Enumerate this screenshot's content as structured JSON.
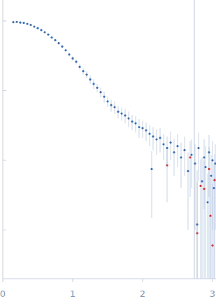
{
  "chart_data": {
    "type": "scatter",
    "log": "y",
    "grid": false,
    "tick_labels": "x",
    "marker": "circle",
    "xlim": [
      0,
      3.05
    ],
    "ylim": [
      0.0002,
      2
    ],
    "xticks": [
      0,
      1,
      2,
      3
    ],
    "yticks": [
      1,
      0.1,
      0.01,
      0.001
    ],
    "x_markers": [
      2.74
    ],
    "series": [
      {
        "color": "#3a6fbf",
        "x": [
          0.15,
          0.2,
          0.25,
          0.3,
          0.35,
          0.4,
          0.45,
          0.5,
          0.55,
          0.6,
          0.65,
          0.7,
          0.75,
          0.8,
          0.85,
          0.9,
          0.95,
          1.0,
          1.05,
          1.1,
          1.15,
          1.2,
          1.25,
          1.3,
          1.35,
          1.4,
          1.45,
          1.5,
          1.55,
          1.6,
          1.65,
          1.7,
          1.75,
          1.8,
          1.85,
          1.9,
          1.95,
          2.0,
          2.05,
          2.1,
          2.13,
          2.15,
          2.2,
          2.25,
          2.3,
          2.35,
          2.4,
          2.45,
          2.5,
          2.55,
          2.6,
          2.65,
          2.7,
          2.75,
          2.78,
          2.8,
          2.85,
          2.88,
          2.9,
          2.93,
          2.95,
          2.98,
          3.0,
          3.02,
          3.04
        ],
        "values": [
          0.96,
          0.97,
          0.95,
          0.94,
          0.91,
          0.88,
          0.83,
          0.79,
          0.74,
          0.69,
          0.64,
          0.58,
          0.53,
          0.48,
          0.43,
          0.38,
          0.33,
          0.29,
          0.26,
          0.22,
          0.19,
          0.17,
          0.145,
          0.125,
          0.11,
          0.095,
          0.082,
          0.07,
          0.062,
          0.058,
          0.05,
          0.047,
          0.044,
          0.04,
          0.036,
          0.034,
          0.03,
          0.029,
          0.027,
          0.024,
          0.0075,
          0.022,
          0.02,
          0.021,
          0.017,
          0.015,
          0.018,
          0.013,
          0.016,
          0.011,
          0.014,
          0.007,
          0.012,
          0.009,
          0.0012,
          0.015,
          0.005,
          0.011,
          0.008,
          0.0025,
          0.013,
          0.006,
          0.01,
          0.004,
          0.009
        ],
        "errors": [
          0.02,
          0.02,
          0.02,
          0.02,
          0.02,
          0.02,
          0.02,
          0.02,
          0.02,
          0.02,
          0.02,
          0.02,
          0.02,
          0.02,
          0.02,
          0.02,
          0.02,
          0.02,
          0.02,
          0.02,
          0.02,
          0.02,
          0.02,
          0.02,
          0.015,
          0.015,
          0.015,
          0.012,
          0.012,
          0.012,
          0.01,
          0.01,
          0.01,
          0.01,
          0.009,
          0.009,
          0.009,
          0.008,
          0.008,
          0.008,
          0.006,
          0.008,
          0.008,
          0.008,
          0.007,
          0.007,
          0.008,
          0.007,
          0.008,
          0.007,
          0.008,
          0.006,
          0.008,
          0.008,
          0.006,
          0.01,
          0.006,
          0.009,
          0.008,
          0.004,
          0.01,
          0.006,
          0.009,
          0.005,
          0.008
        ]
      },
      {
        "color": "#e03030",
        "x": [
          2.35,
          2.68,
          2.78,
          2.83,
          2.88,
          2.95,
          2.97,
          3.0,
          3.03
        ],
        "values": [
          0.0085,
          0.011,
          0.0009,
          0.0043,
          0.0039,
          0.0075,
          0.0016,
          0.0006,
          0.0052
        ],
        "errors": [
          0.006,
          0.008,
          0.004,
          0.006,
          0.006,
          0.008,
          0.004,
          0.004,
          0.007
        ]
      }
    ]
  }
}
